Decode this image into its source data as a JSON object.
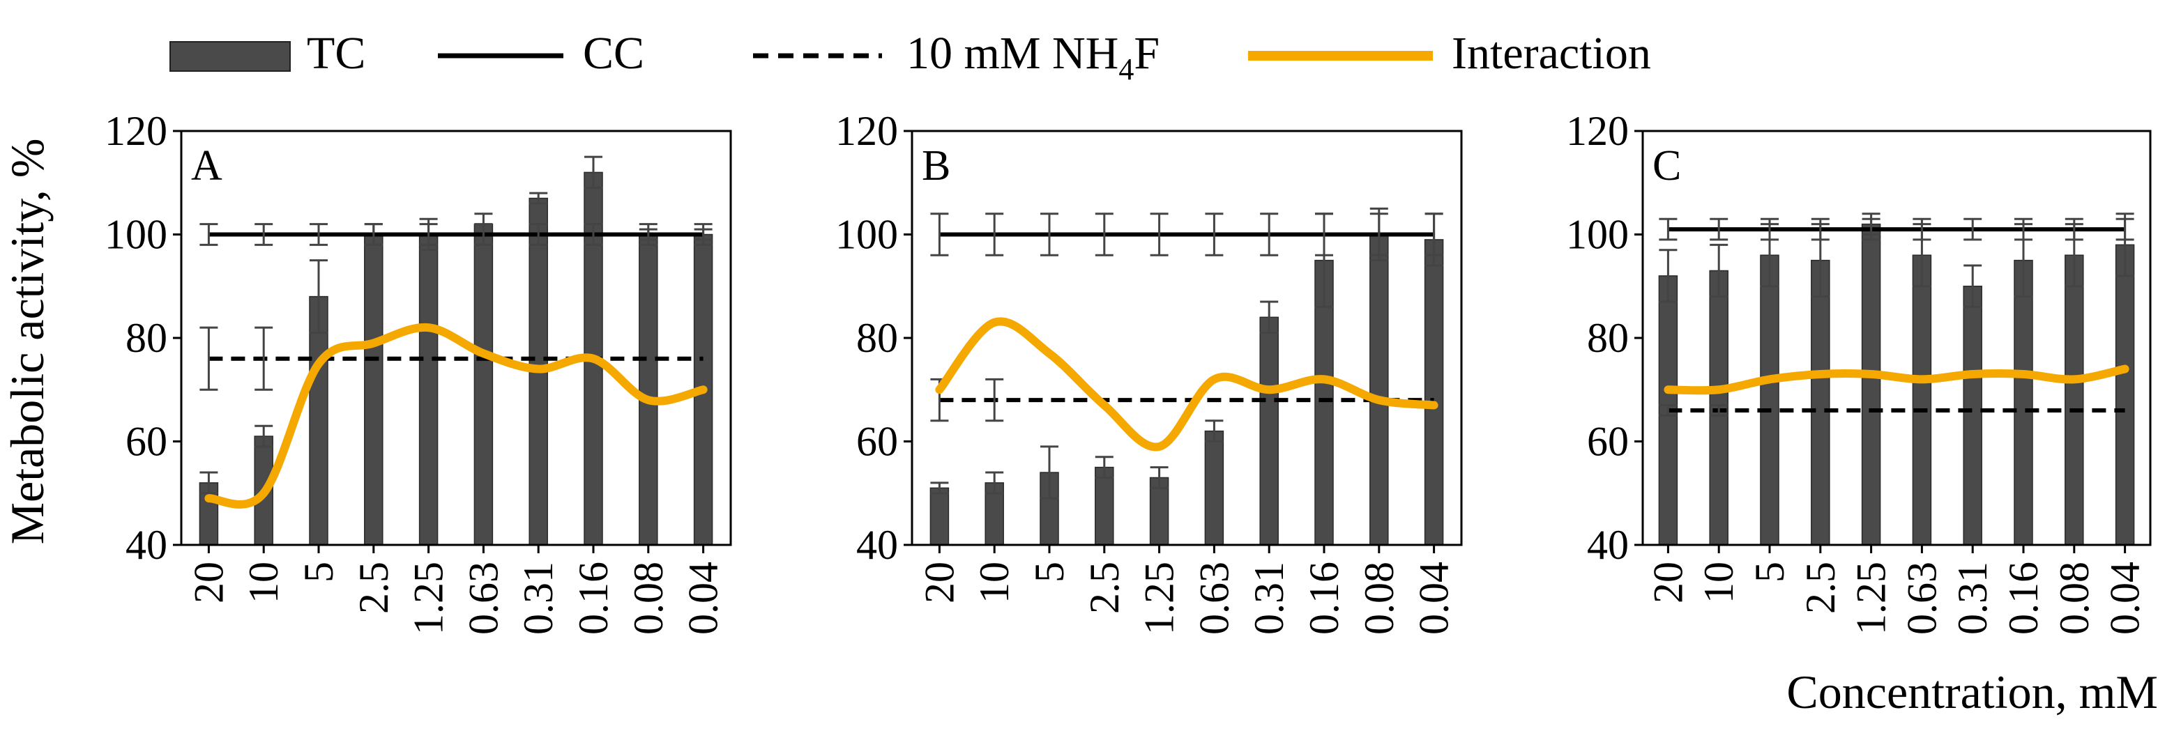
{
  "chart_data": {
    "type": "bar",
    "legend": {
      "tc": "TC",
      "cc": "CC",
      "nh4f_prefix": "10 mM NH",
      "nh4f_sub": "4",
      "nh4f_suffix": "F",
      "interaction": "Interaction"
    },
    "ylabel": "Metabolic activity, %",
    "xlabel": "Concentration, mM",
    "ylim": [
      40,
      120
    ],
    "yticks": [
      "40",
      "60",
      "80",
      "100",
      "120"
    ],
    "categories": [
      "20",
      "10",
      "5",
      "2.5",
      "1.25",
      "0.63",
      "0.31",
      "0.16",
      "0.08",
      "0.04"
    ],
    "colors": {
      "bar": "#4a4a4a",
      "interaction": "#f5a800",
      "line": "#000000"
    },
    "panels": [
      {
        "label": "A",
        "tc": [
          52,
          61,
          88,
          100,
          100,
          102,
          107,
          112,
          100,
          100
        ],
        "tc_err": [
          2,
          2,
          7,
          2,
          3,
          2,
          1,
          3,
          1,
          1
        ],
        "cc": 100,
        "cc_err": 2,
        "nh4f": 76,
        "nh4f_err": 6,
        "interaction": [
          49,
          50,
          75,
          79,
          82,
          77,
          74,
          76,
          68,
          70
        ]
      },
      {
        "label": "B",
        "tc": [
          51,
          52,
          54,
          55,
          53,
          62,
          84,
          95,
          100,
          99
        ],
        "tc_err": [
          1,
          2,
          5,
          2,
          2,
          2,
          3,
          9,
          5,
          5
        ],
        "cc": 100,
        "cc_err": 4,
        "nh4f": 68,
        "nh4f_err": 4,
        "interaction": [
          70,
          83,
          77,
          67,
          59,
          72,
          70,
          72,
          68,
          67
        ]
      },
      {
        "label": "C",
        "tc": [
          92,
          93,
          96,
          95,
          102,
          96,
          90,
          95,
          96,
          98
        ],
        "tc_err": [
          5,
          5,
          6,
          7,
          2,
          6,
          4,
          7,
          6,
          6
        ],
        "cc": 101,
        "cc_err": 2,
        "nh4f": 66,
        "nh4f_err": 1,
        "interaction": [
          70,
          70,
          72,
          73,
          73,
          72,
          73,
          73,
          72,
          74
        ]
      }
    ]
  }
}
